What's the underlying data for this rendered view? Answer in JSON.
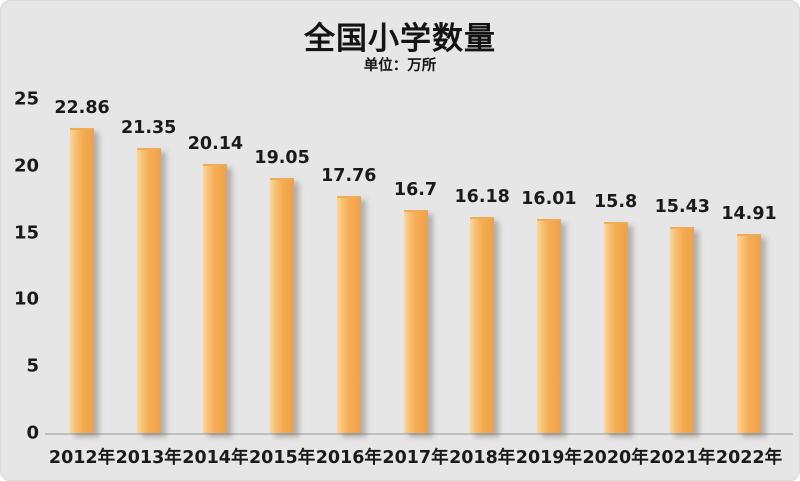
{
  "chart_data": {
    "type": "bar",
    "title": "全国小学数量",
    "subtitle": "单位：万所",
    "categories": [
      "2012年",
      "2013年",
      "2014年",
      "2015年",
      "2016年",
      "2017年",
      "2018年",
      "2019年",
      "2020年",
      "2021年",
      "2022年"
    ],
    "values": [
      22.86,
      21.35,
      20.14,
      19.05,
      17.76,
      16.7,
      16.18,
      16.01,
      15.8,
      15.43,
      14.91
    ],
    "data_labels": [
      "22.86",
      "21.35",
      "20.14",
      "19.05",
      "17.76",
      "16.7",
      "16.18",
      "16.01",
      "15.8",
      "15.43",
      "14.91"
    ],
    "xlabel": "",
    "ylabel": "",
    "ylim": [
      0,
      25
    ],
    "yticks": [
      0,
      5,
      10,
      15,
      20,
      25
    ],
    "grid": false,
    "legend_position": "none"
  },
  "colors": {
    "card_background": "#E6E6E6",
    "bar_main": "#F5AE55",
    "bar_light_edge": "#FAD7A0",
    "bar_dark_edge": "#E9A152",
    "bar_shadow": "rgba(115,108,100,0.45)",
    "axis_line": "#BFBFBF",
    "text": "#1A1A1A"
  }
}
